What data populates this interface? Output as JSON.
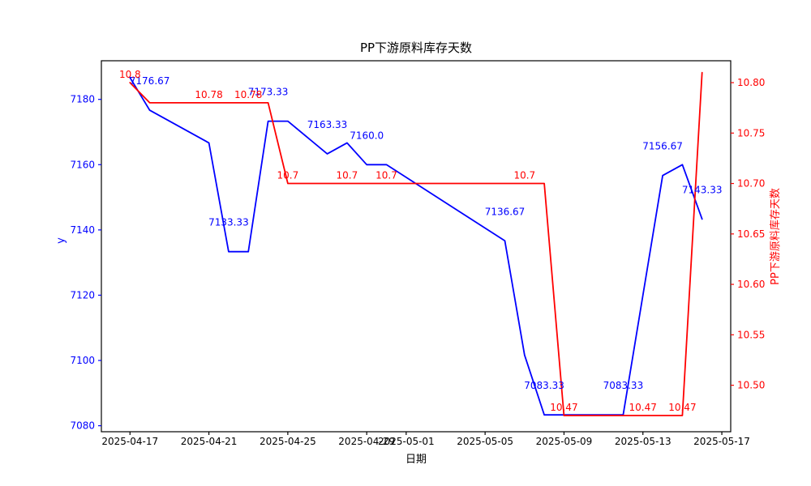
{
  "chart_data": {
    "type": "line",
    "title": "PP下游原料库存天数",
    "xlabel": "日期",
    "ylabel_left": "y",
    "ylabel_right": "PP下游原料库存天数",
    "colors": {
      "left_series": "#0000ff",
      "right_series": "#ff0000",
      "left_axis": "#0000ff",
      "right_axis": "#ff0000",
      "x_axis": "#000000",
      "frame": "#000000",
      "title": "#000000"
    },
    "legend": "none",
    "grid": false,
    "x_ticks": [
      "2025-04-17",
      "2025-04-21",
      "2025-04-25",
      "2025-04-29",
      "2025-05-01",
      "2025-05-05",
      "2025-05-09",
      "2025-05-13",
      "2025-05-17"
    ],
    "y_ticks_left": [
      "7080",
      "7100",
      "7120",
      "7140",
      "7160",
      "7180"
    ],
    "y_ticks_right": [
      "10.50",
      "10.55",
      "10.60",
      "10.65",
      "10.70",
      "10.75",
      "10.80"
    ],
    "xlim_days_from_2025-04-17": [
      -1.45,
      30.45
    ],
    "ylim_left": [
      7078.16,
      7191.84
    ],
    "ylim_right": [
      10.4539,
      10.8217
    ],
    "series": [
      {
        "name": "y",
        "axis": "left",
        "color": "#0000ff",
        "points": [
          [
            "2025-04-17",
            7186.67,
            null
          ],
          [
            "2025-04-18",
            7176.67,
            "7176.67"
          ],
          [
            "2025-04-21",
            7166.67,
            null
          ],
          [
            "2025-04-22",
            7133.33,
            "7133.33"
          ],
          [
            "2025-04-23",
            7133.33,
            null
          ],
          [
            "2025-04-24",
            7173.33,
            "7173.33"
          ],
          [
            "2025-04-25",
            7173.33,
            null
          ],
          [
            "2025-04-27",
            7163.33,
            "7163.33"
          ],
          [
            "2025-04-28",
            7166.67,
            null
          ],
          [
            "2025-04-29",
            7160.0,
            "7160.0"
          ],
          [
            "2025-04-30",
            7160.0,
            null
          ],
          [
            "2025-05-06",
            7136.67,
            "7136.67"
          ],
          [
            "2025-05-07",
            7101.67,
            null
          ],
          [
            "2025-05-08",
            7083.33,
            "7083.33"
          ],
          [
            "2025-05-09",
            7083.33,
            null
          ],
          [
            "2025-05-12",
            7083.33,
            "7083.33"
          ],
          [
            "2025-05-14",
            7156.67,
            "7156.67"
          ],
          [
            "2025-05-15",
            7160.0,
            null
          ],
          [
            "2025-05-16",
            7143.33,
            "7143.33"
          ]
        ]
      },
      {
        "name": "PP下游原料库存天数",
        "axis": "right",
        "color": "#ff0000",
        "points": [
          [
            "2025-04-17",
            10.8,
            "10.8"
          ],
          [
            "2025-04-18",
            10.78,
            null
          ],
          [
            "2025-04-21",
            10.78,
            "10.78"
          ],
          [
            "2025-04-22",
            10.78,
            null
          ],
          [
            "2025-04-23",
            10.78,
            "10.78"
          ],
          [
            "2025-04-24",
            10.78,
            null
          ],
          [
            "2025-04-25",
            10.7,
            "10.7"
          ],
          [
            "2025-04-27",
            10.7,
            null
          ],
          [
            "2025-04-28",
            10.7,
            "10.7"
          ],
          [
            "2025-04-29",
            10.7,
            null
          ],
          [
            "2025-04-30",
            10.7,
            "10.7"
          ],
          [
            "2025-05-06",
            10.7,
            null
          ],
          [
            "2025-05-07",
            10.7,
            "10.7"
          ],
          [
            "2025-05-08",
            10.7,
            null
          ],
          [
            "2025-05-09",
            10.47,
            "10.47"
          ],
          [
            "2025-05-12",
            10.47,
            null
          ],
          [
            "2025-05-13",
            10.47,
            "10.47"
          ],
          [
            "2025-05-14",
            10.47,
            null
          ],
          [
            "2025-05-15",
            10.47,
            "10.47"
          ],
          [
            "2025-05-16",
            10.81,
            null
          ]
        ]
      }
    ]
  }
}
